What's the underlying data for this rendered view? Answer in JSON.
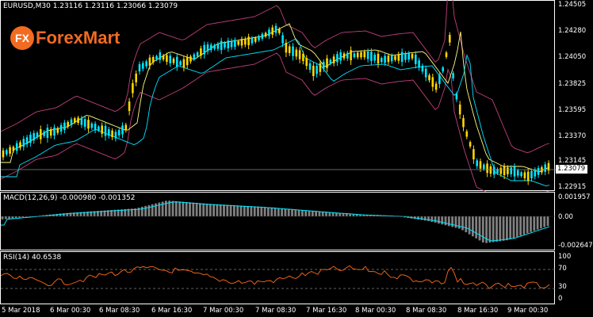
{
  "main": {
    "title": "EURUSD,M30  1.23116 1.23116 1.23066 1.23079",
    "current_price": "1.23079",
    "yticks": [
      "1.24505",
      "1.24280",
      "1.24050",
      "1.23825",
      "1.23595",
      "1.23370",
      "1.23145",
      "1.22915"
    ]
  },
  "logo": {
    "mark": "FX",
    "text": "ForexMart",
    "color": "#f26b21"
  },
  "macd": {
    "title": "MACD(12,26,9) -0.000980 -0.001352",
    "yticks": [
      "0.001957",
      "0.00",
      "-0.002647"
    ]
  },
  "rsi": {
    "title": "RSI(14) 40.6538",
    "yticks": [
      "100",
      "70",
      "30",
      "0"
    ]
  },
  "xaxis": [
    "5 Mar 2018",
    "6 Mar 00:30",
    "6 Mar 08:30",
    "6 Mar 16:30",
    "7 Mar 00:30",
    "7 Mar 08:30",
    "7 Mar 16:30",
    "8 Mar 00:30",
    "8 Mar 08:30",
    "8 Mar 16:30",
    "9 Mar 00:30"
  ],
  "colors": {
    "bull": "#ffd700",
    "bear": "#00e5ff",
    "band": "#c0407a",
    "ma_fast": "#ffff80",
    "ma_slow": "#00e5ff",
    "macd_hist": "#808080",
    "macd_signal": "#00e5ff",
    "rsi_line": "#ff6a1a",
    "rsi_levels": "#808080"
  }
}
